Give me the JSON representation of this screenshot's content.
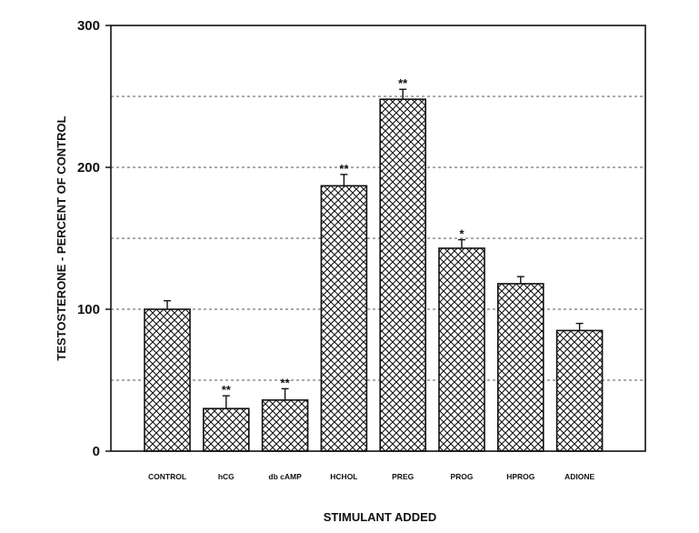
{
  "chart_data": {
    "type": "bar",
    "title": "",
    "xlabel": "STIMULANT ADDED",
    "ylabel": "TESTOSTERONE - PERCENT OF CONTROL",
    "ylim": [
      0,
      300
    ],
    "yticks": [
      0,
      100,
      200,
      300
    ],
    "grid": true,
    "grid_lines_at": [
      50,
      100,
      150,
      200,
      250
    ],
    "categories": [
      "CONTROL",
      "hCG",
      "db cAMP",
      "HCHOL",
      "PREG",
      "PROG",
      "HPROG",
      "ADIONE"
    ],
    "values": [
      100,
      30,
      36,
      187,
      248,
      143,
      118,
      85
    ],
    "errors": [
      6,
      9,
      8,
      8,
      7,
      6,
      5,
      5
    ],
    "significance": [
      "",
      "**",
      "**",
      "**",
      "**",
      "*",
      "",
      ""
    ]
  }
}
